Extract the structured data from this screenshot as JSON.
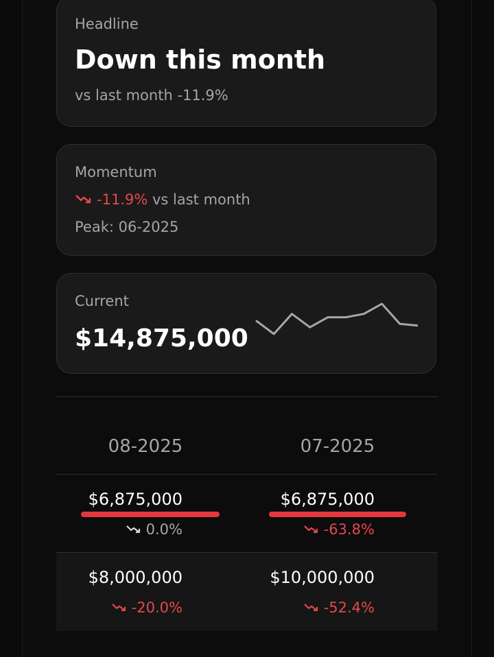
{
  "headline": {
    "eyebrow": "Headline",
    "title": "Down this month",
    "subtitle": "vs last month -11.9%"
  },
  "momentum": {
    "eyebrow": "Momentum",
    "change": "-11.9%",
    "change_suffix": "vs last month",
    "peak": "Peak: 06-2025",
    "trend_icon": "trend-down-icon"
  },
  "current": {
    "eyebrow": "Current",
    "value": "$14,875,000",
    "sparkline_values": [
      10,
      6,
      12,
      8,
      11,
      11,
      12,
      15,
      9,
      8.5
    ]
  },
  "table": {
    "columns": [
      "08-2025",
      "07-2025"
    ],
    "rows": [
      {
        "cells": [
          {
            "value": "$6,875,000",
            "change": "0.0%",
            "tone": "neutral",
            "highlighted": true
          },
          {
            "value": "$6,875,000",
            "change": "-63.8%",
            "tone": "negative",
            "highlighted": true
          }
        ]
      },
      {
        "cells": [
          {
            "value": "$8,000,000",
            "change": "-20.0%",
            "tone": "negative",
            "highlighted": false
          },
          {
            "value": "$10,000,000",
            "change": "-52.4%",
            "tone": "negative",
            "highlighted": false
          }
        ]
      }
    ]
  },
  "colors": {
    "negative": "#e5484d",
    "neutral": "#a6a6a6",
    "highlight": "#e5373d"
  }
}
